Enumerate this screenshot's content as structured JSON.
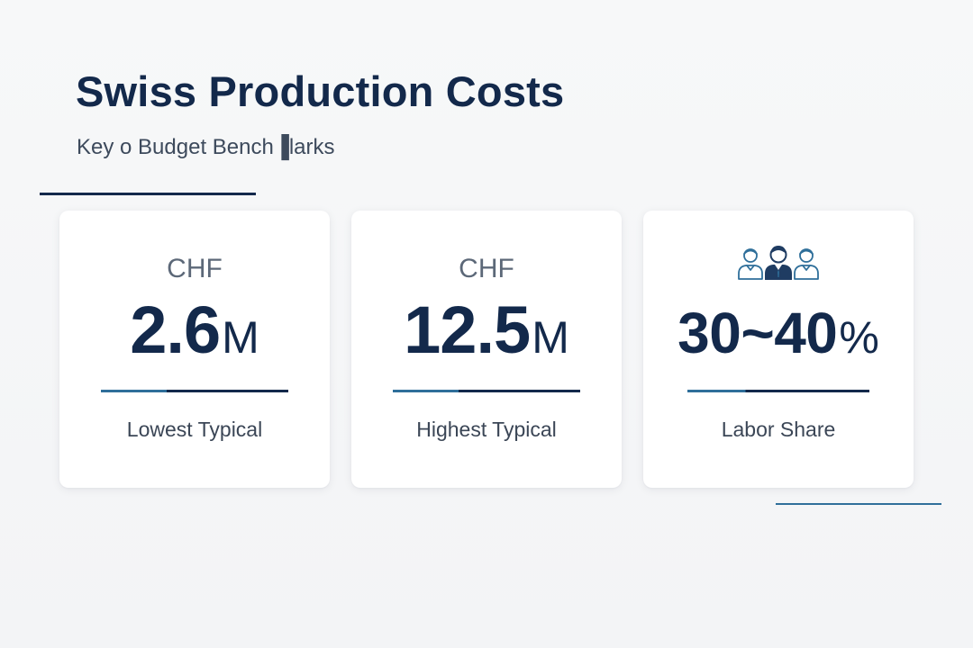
{
  "header": {
    "title": "Swiss Production Costs",
    "subtitle": "Key o Budget Bench▐larks"
  },
  "cards": [
    {
      "prefix": "CHF",
      "value": "2.6",
      "unit": "M",
      "label": "Lowest Typical"
    },
    {
      "prefix": "CHF",
      "value": "12.5",
      "unit": "M",
      "label": "Highest Typical"
    },
    {
      "icon": "team-icon",
      "value": "30~40",
      "unit": "%",
      "label": "Labor Share"
    }
  ],
  "colors": {
    "navy": "#13294b",
    "accent_blue": "#2f6f9a",
    "muted_text": "#5c6878",
    "background": "#f5f6f7"
  }
}
